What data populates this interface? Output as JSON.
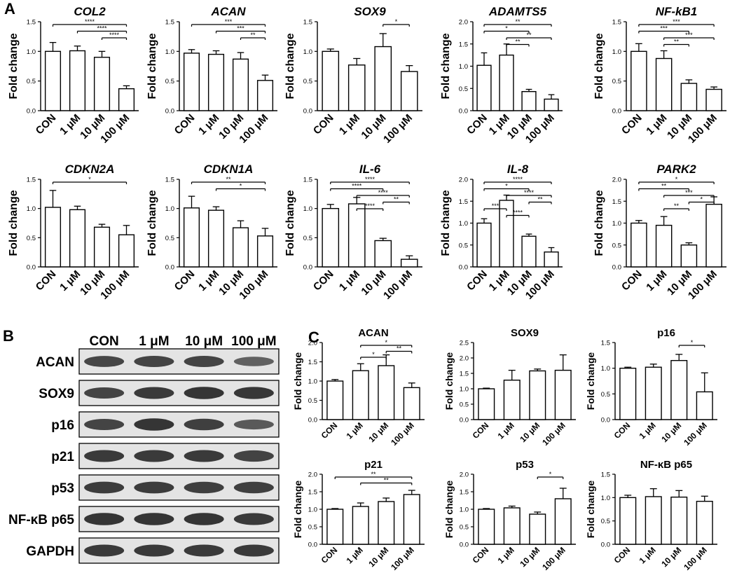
{
  "panels": {
    "A": "A",
    "B": "B",
    "C": "C"
  },
  "blot": {
    "lanes": [
      "CON",
      "1 μM",
      "10 μM",
      "100 μM"
    ],
    "rows": [
      {
        "label": "ACAN",
        "intensity": [
          0.78,
          0.8,
          0.8,
          0.55
        ]
      },
      {
        "label": "SOX9",
        "intensity": [
          0.8,
          0.9,
          0.95,
          0.92
        ]
      },
      {
        "label": "p16",
        "intensity": [
          0.8,
          0.95,
          0.85,
          0.62
        ]
      },
      {
        "label": "p21",
        "intensity": [
          0.9,
          0.9,
          0.9,
          0.82
        ]
      },
      {
        "label": "p53",
        "intensity": [
          0.88,
          0.88,
          0.85,
          0.85
        ]
      },
      {
        "label": "NF-κB p65",
        "intensity": [
          0.95,
          0.95,
          0.95,
          0.9
        ]
      },
      {
        "label": "GAPDH",
        "intensity": [
          0.9,
          0.9,
          0.9,
          0.9
        ]
      }
    ]
  },
  "chart_data": [
    {
      "panel": "A",
      "type": "bar",
      "title": "COL2",
      "italic": true,
      "ylabel": "Fold change",
      "ylim": [
        0,
        1.5
      ],
      "yticks": [
        "0.0",
        "0.5",
        "1.0",
        "1.5"
      ],
      "categories": [
        "CON",
        "1 μM",
        "10 μM",
        "100 μM"
      ],
      "values": [
        1.0,
        1.01,
        0.9,
        0.37
      ],
      "errors": [
        0.15,
        0.08,
        0.1,
        0.05
      ],
      "brackets": [
        {
          "from": 0,
          "to": 3,
          "label": "****"
        },
        {
          "from": 1,
          "to": 3,
          "label": "****"
        },
        {
          "from": 2,
          "to": 3,
          "label": "****"
        }
      ]
    },
    {
      "panel": "A",
      "type": "bar",
      "title": "ACAN",
      "italic": true,
      "ylabel": "Fold change",
      "ylim": [
        0,
        1.5
      ],
      "yticks": [
        "0.0",
        "0.5",
        "1.0",
        "1.5"
      ],
      "categories": [
        "CON",
        "1 μM",
        "10 μM",
        "100 μM"
      ],
      "values": [
        0.97,
        0.95,
        0.87,
        0.51
      ],
      "errors": [
        0.06,
        0.06,
        0.11,
        0.09
      ],
      "brackets": [
        {
          "from": 0,
          "to": 3,
          "label": "***"
        },
        {
          "from": 1,
          "to": 3,
          "label": "***"
        },
        {
          "from": 2,
          "to": 3,
          "label": "**"
        }
      ]
    },
    {
      "panel": "A",
      "type": "bar",
      "title": "SOX9",
      "italic": true,
      "ylabel": "Fold change",
      "ylim": [
        0,
        1.5
      ],
      "yticks": [
        "0.0",
        "0.5",
        "1.0",
        "1.5"
      ],
      "categories": [
        "CON",
        "1 μM",
        "10 μM",
        "100 μM"
      ],
      "values": [
        1.0,
        0.77,
        1.08,
        0.66
      ],
      "errors": [
        0.04,
        0.11,
        0.22,
        0.1
      ],
      "brackets": [
        {
          "from": 2,
          "to": 3,
          "label": "*"
        }
      ]
    },
    {
      "panel": "A",
      "type": "bar",
      "title": "ADAMTS5",
      "italic": true,
      "ylabel": "Fold change",
      "ylim": [
        0,
        2.0
      ],
      "yticks": [
        "0.0",
        "0.5",
        "1.0",
        "1.5",
        "2.0"
      ],
      "categories": [
        "CON",
        "1 μM",
        "10 μM",
        "100 μM"
      ],
      "values": [
        1.02,
        1.25,
        0.43,
        0.26
      ],
      "errors": [
        0.28,
        0.25,
        0.05,
        0.1
      ],
      "brackets": [
        {
          "from": 0,
          "to": 3,
          "label": "**"
        },
        {
          "from": 0,
          "to": 2,
          "label": "*"
        },
        {
          "from": 1,
          "to": 3,
          "label": "**"
        },
        {
          "from": 1,
          "to": 2,
          "label": "**"
        }
      ]
    },
    {
      "panel": "A",
      "type": "bar",
      "title": "NF-kB1",
      "italic": true,
      "ylabel": "Fold change",
      "ylim": [
        0,
        1.5
      ],
      "yticks": [
        "0.0",
        "0.5",
        "1.0",
        "1.5"
      ],
      "categories": [
        "CON",
        "1 μM",
        "10 μM",
        "100 μM"
      ],
      "values": [
        1.0,
        0.88,
        0.46,
        0.36
      ],
      "errors": [
        0.13,
        0.13,
        0.06,
        0.04
      ],
      "brackets": [
        {
          "from": 0,
          "to": 3,
          "label": "***"
        },
        {
          "from": 0,
          "to": 2,
          "label": "***"
        },
        {
          "from": 1,
          "to": 3,
          "label": "***"
        },
        {
          "from": 1,
          "to": 2,
          "label": "**"
        }
      ]
    },
    {
      "panel": "A",
      "type": "bar",
      "title": "CDKN2A",
      "italic": true,
      "ylabel": "Fold change",
      "ylim": [
        0,
        1.5
      ],
      "yticks": [
        "0.0",
        "0.5",
        "1.0",
        "1.5"
      ],
      "categories": [
        "CON",
        "1 μM",
        "10 μM",
        "100 μM"
      ],
      "values": [
        1.02,
        0.98,
        0.68,
        0.55
      ],
      "errors": [
        0.29,
        0.06,
        0.05,
        0.16
      ],
      "brackets": [
        {
          "from": 0,
          "to": 3,
          "label": "*"
        }
      ]
    },
    {
      "panel": "A",
      "type": "bar",
      "title": "CDKN1A",
      "italic": true,
      "ylabel": "Fold change",
      "ylim": [
        0,
        1.5
      ],
      "yticks": [
        "0.0",
        "0.5",
        "1.0",
        "1.5"
      ],
      "categories": [
        "CON",
        "1 μM",
        "10 μM",
        "100 μM"
      ],
      "values": [
        1.01,
        0.97,
        0.67,
        0.53
      ],
      "errors": [
        0.2,
        0.06,
        0.12,
        0.13
      ],
      "brackets": [
        {
          "from": 0,
          "to": 3,
          "label": "**"
        },
        {
          "from": 1,
          "to": 3,
          "label": "*"
        }
      ]
    },
    {
      "panel": "A",
      "type": "bar",
      "title": "IL-6",
      "italic": true,
      "ylabel": "Fold change",
      "ylim": [
        0,
        1.5
      ],
      "yticks": [
        "0.0",
        "0.5",
        "1.0",
        "1.5"
      ],
      "categories": [
        "CON",
        "1 μM",
        "10 μM",
        "100 μM"
      ],
      "values": [
        1.0,
        1.08,
        0.45,
        0.13
      ],
      "errors": [
        0.07,
        0.11,
        0.04,
        0.06
      ],
      "brackets": [
        {
          "from": 0,
          "to": 3,
          "label": "****"
        },
        {
          "from": 0,
          "to": 2,
          "label": "****"
        },
        {
          "from": 1,
          "to": 3,
          "label": "****"
        },
        {
          "from": 2,
          "to": 3,
          "label": "**"
        },
        {
          "from": 1,
          "to": 2,
          "label": "****"
        }
      ]
    },
    {
      "panel": "A",
      "type": "bar",
      "title": "IL-8",
      "italic": true,
      "ylabel": "Fold change",
      "ylim": [
        0,
        2.0
      ],
      "yticks": [
        "0.0",
        "0.5",
        "1.0",
        "1.5",
        "2.0"
      ],
      "categories": [
        "CON",
        "1 μM",
        "10 μM",
        "100 μM"
      ],
      "values": [
        1.0,
        1.52,
        0.7,
        0.34
      ],
      "errors": [
        0.1,
        0.12,
        0.05,
        0.1
      ],
      "brackets": [
        {
          "from": 0,
          "to": 3,
          "label": "****"
        },
        {
          "from": 0,
          "to": 2,
          "label": "*"
        },
        {
          "from": 2,
          "to": 3,
          "label": "**"
        },
        {
          "from": 0,
          "to": 1,
          "label": "***"
        },
        {
          "from": 1,
          "to": 3,
          "label": "****"
        },
        {
          "from": 1,
          "to": 2,
          "label": "****"
        }
      ]
    },
    {
      "panel": "A",
      "type": "bar",
      "title": "PARK2",
      "italic": true,
      "ylabel": "Fold change",
      "ylim": [
        0,
        2.0
      ],
      "yticks": [
        "0.0",
        "0.5",
        "1.0",
        "1.5",
        "2.0"
      ],
      "categories": [
        "CON",
        "1 μM",
        "10 μM",
        "100 μM"
      ],
      "values": [
        1.0,
        0.95,
        0.5,
        1.43
      ],
      "errors": [
        0.06,
        0.2,
        0.05,
        0.17
      ],
      "brackets": [
        {
          "from": 0,
          "to": 3,
          "label": "*"
        },
        {
          "from": 0,
          "to": 2,
          "label": "**"
        },
        {
          "from": 1,
          "to": 3,
          "label": "***"
        },
        {
          "from": 2,
          "to": 3,
          "label": "*"
        },
        {
          "from": 1,
          "to": 2,
          "label": "**"
        }
      ]
    },
    {
      "panel": "C",
      "type": "bar",
      "title": "ACAN",
      "italic": false,
      "ylabel": "Fold change",
      "ylim": [
        0,
        2.0
      ],
      "yticks": [
        "0.0",
        "0.5",
        "1.0",
        "1.5",
        "2.0"
      ],
      "categories": [
        "CON",
        "1 μM",
        "10 μM",
        "100 μM"
      ],
      "values": [
        1.0,
        1.27,
        1.4,
        0.83
      ],
      "errors": [
        0.04,
        0.18,
        0.28,
        0.12
      ],
      "brackets": [
        {
          "from": 1,
          "to": 3,
          "label": "*"
        },
        {
          "from": 2,
          "to": 3,
          "label": "**"
        },
        {
          "from": 1,
          "to": 2,
          "label": "*"
        }
      ]
    },
    {
      "panel": "C",
      "type": "bar",
      "title": "SOX9",
      "italic": false,
      "ylabel": "Fold change",
      "ylim": [
        0,
        2.5
      ],
      "yticks": [
        "0.0",
        "0.5",
        "1.0",
        "1.5",
        "2.0",
        "2.5"
      ],
      "categories": [
        "CON",
        "1 μM",
        "10 μM",
        "100 μM"
      ],
      "values": [
        1.0,
        1.28,
        1.58,
        1.6
      ],
      "errors": [
        0.02,
        0.32,
        0.06,
        0.5
      ],
      "brackets": []
    },
    {
      "panel": "C",
      "type": "bar",
      "title": "p16",
      "italic": false,
      "ylabel": "Fold change",
      "ylim": [
        0,
        1.5
      ],
      "yticks": [
        "0.0",
        "0.5",
        "1.0",
        "1.5"
      ],
      "categories": [
        "CON",
        "1 μM",
        "10 μM",
        "100 μM"
      ],
      "values": [
        1.0,
        1.02,
        1.15,
        0.54
      ],
      "errors": [
        0.02,
        0.06,
        0.12,
        0.37
      ],
      "brackets": [
        {
          "from": 2,
          "to": 3,
          "label": "*"
        }
      ]
    },
    {
      "panel": "C",
      "type": "bar",
      "title": "p21",
      "italic": false,
      "ylabel": "Fold change",
      "ylim": [
        0,
        2.0
      ],
      "yticks": [
        "0.0",
        "0.5",
        "1.0",
        "1.5",
        "2.0"
      ],
      "categories": [
        "CON",
        "1 μM",
        "10 μM",
        "100 μM"
      ],
      "values": [
        1.0,
        1.08,
        1.22,
        1.42
      ],
      "errors": [
        0.02,
        0.1,
        0.1,
        0.12
      ],
      "brackets": [
        {
          "from": 0,
          "to": 3,
          "label": "**"
        },
        {
          "from": 1,
          "to": 3,
          "label": "**"
        }
      ]
    },
    {
      "panel": "C",
      "type": "bar",
      "title": "p53",
      "italic": false,
      "ylabel": "Fold change",
      "ylim": [
        0,
        2.0
      ],
      "yticks": [
        "0.0",
        "0.5",
        "1.0",
        "1.5",
        "2.0"
      ],
      "categories": [
        "CON",
        "1 μM",
        "10 μM",
        "100 μM"
      ],
      "values": [
        1.0,
        1.04,
        0.86,
        1.3
      ],
      "errors": [
        0.02,
        0.05,
        0.06,
        0.3
      ],
      "brackets": [
        {
          "from": 2,
          "to": 3,
          "label": "*"
        }
      ]
    },
    {
      "panel": "C",
      "type": "bar",
      "title": "NF-κB p65",
      "italic": false,
      "ylabel": "Fold change",
      "ylim": [
        0,
        1.5
      ],
      "yticks": [
        "0.0",
        "0.5",
        "1.0",
        "1.5"
      ],
      "categories": [
        "CON",
        "1 μM",
        "10 μM",
        "100 μM"
      ],
      "values": [
        1.0,
        1.02,
        1.01,
        0.92
      ],
      "errors": [
        0.05,
        0.17,
        0.14,
        0.11
      ],
      "brackets": []
    }
  ]
}
